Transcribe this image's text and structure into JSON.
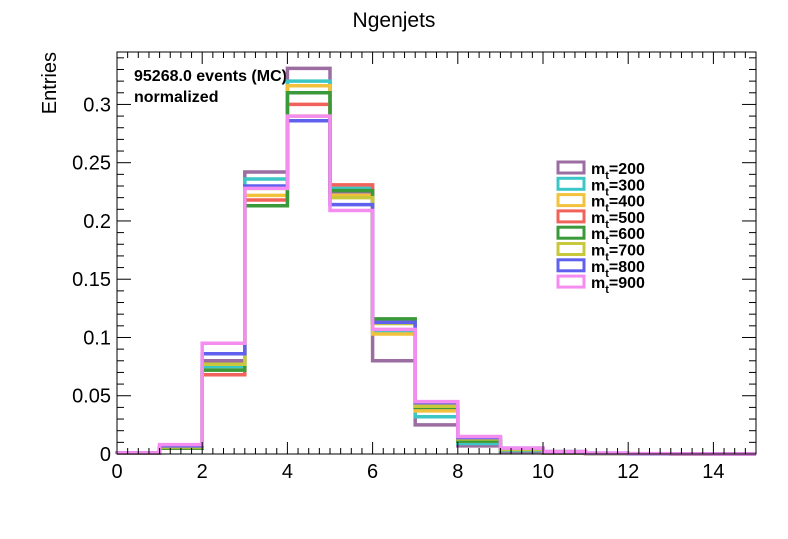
{
  "chart_data": {
    "type": "histogram",
    "title": "Ngenjets",
    "xlabel": "",
    "ylabel": "Entries",
    "xlim": [
      0,
      15
    ],
    "ylim": [
      0,
      0.345
    ],
    "x_ticks": [
      0,
      2,
      4,
      6,
      8,
      10,
      12,
      14
    ],
    "y_ticks": [
      0,
      0.05,
      0.1,
      0.15,
      0.2,
      0.25,
      0.3
    ],
    "x_tick_labels": [
      "0",
      "2",
      "4",
      "6",
      "8",
      "10",
      "12",
      "14"
    ],
    "y_tick_labels": [
      "0",
      "0.05",
      "0.1",
      "0.15",
      "0.2",
      "0.25",
      "0.3"
    ],
    "annotations": [
      "95268.0 events (MC)",
      "normalized"
    ],
    "grid": false,
    "legend_position": "right",
    "bin_edges": [
      0,
      1,
      2,
      3,
      4,
      5,
      6,
      7,
      8,
      9,
      10,
      11,
      12,
      13,
      14,
      15
    ],
    "series": [
      {
        "name": "m_t=200",
        "legend_sub": "t",
        "legend_prefix": "m",
        "legend_suffix": "=200",
        "color": "#9b6da0",
        "values": [
          0.001,
          0.005,
          0.08,
          0.242,
          0.331,
          0.225,
          0.08,
          0.025,
          0.007,
          0.002,
          0.001,
          0.0003,
          0.0001,
          0.0,
          0.0
        ]
      },
      {
        "name": "m_t=300",
        "legend_sub": "t",
        "legend_prefix": "m",
        "legend_suffix": "=300",
        "color": "#3cc6c6",
        "values": [
          0.001,
          0.005,
          0.075,
          0.236,
          0.32,
          0.228,
          0.105,
          0.032,
          0.009,
          0.003,
          0.001,
          0.0004,
          0.0001,
          0.0,
          0.0
        ]
      },
      {
        "name": "m_t=400",
        "legend_sub": "t",
        "legend_prefix": "m",
        "legend_suffix": "=400",
        "color": "#f2c23c",
        "values": [
          0.001,
          0.005,
          0.072,
          0.222,
          0.316,
          0.222,
          0.103,
          0.037,
          0.011,
          0.004,
          0.001,
          0.0005,
          0.0002,
          0.0,
          0.0
        ]
      },
      {
        "name": "m_t=500",
        "legend_sub": "t",
        "legend_prefix": "m",
        "legend_suffix": "=500",
        "color": "#f0625a",
        "values": [
          0.001,
          0.005,
          0.068,
          0.218,
          0.3,
          0.231,
          0.113,
          0.04,
          0.012,
          0.004,
          0.001,
          0.0005,
          0.0002,
          0.0,
          0.0
        ]
      },
      {
        "name": "m_t=600",
        "legend_sub": "t",
        "legend_prefix": "m",
        "legend_suffix": "=600",
        "color": "#3a9a3a",
        "values": [
          0.001,
          0.005,
          0.072,
          0.213,
          0.31,
          0.226,
          0.116,
          0.04,
          0.011,
          0.004,
          0.001,
          0.0005,
          0.0002,
          0.0,
          0.0
        ]
      },
      {
        "name": "m_t=700",
        "legend_sub": "t",
        "legend_prefix": "m",
        "legend_suffix": "=700",
        "color": "#c8c83c",
        "values": [
          0.001,
          0.006,
          0.077,
          0.228,
          0.29,
          0.22,
          0.112,
          0.041,
          0.013,
          0.004,
          0.002,
          0.0006,
          0.0002,
          0.0001,
          0.0
        ]
      },
      {
        "name": "m_t=800",
        "legend_sub": "t",
        "legend_prefix": "m",
        "legend_suffix": "=800",
        "color": "#6060ee",
        "values": [
          0.001,
          0.007,
          0.086,
          0.23,
          0.286,
          0.214,
          0.113,
          0.044,
          0.014,
          0.005,
          0.002,
          0.0007,
          0.0002,
          0.0001,
          0.0
        ]
      },
      {
        "name": "m_t=900",
        "legend_sub": "t",
        "legend_prefix": "m",
        "legend_suffix": "=900",
        "color": "#f58cf0",
        "values": [
          0.001,
          0.008,
          0.095,
          0.228,
          0.29,
          0.209,
          0.107,
          0.045,
          0.015,
          0.005,
          0.002,
          0.0008,
          0.0003,
          0.0001,
          0.0
        ]
      }
    ]
  }
}
